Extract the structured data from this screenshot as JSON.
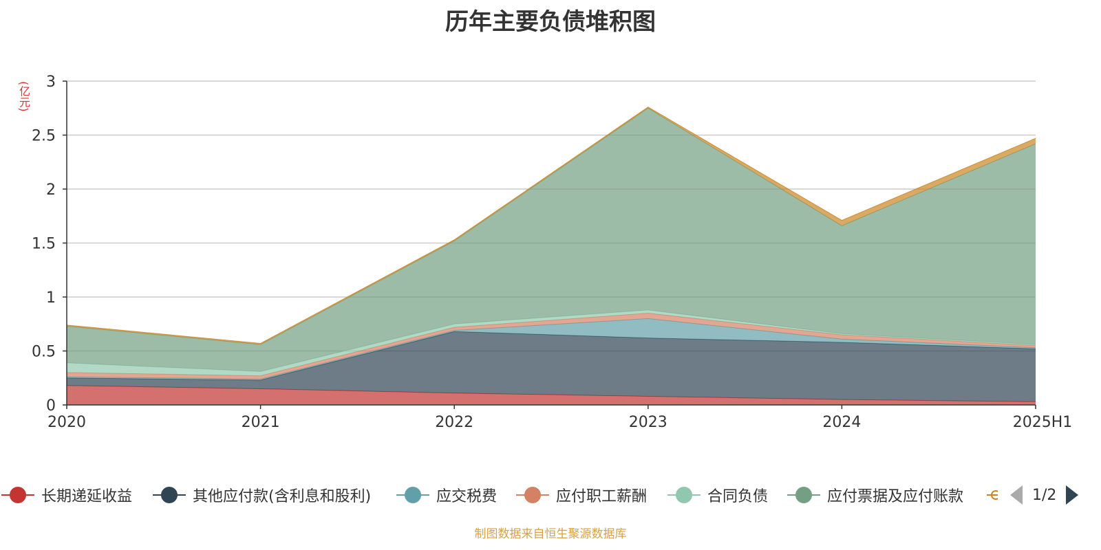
{
  "chart_data": {
    "type": "area",
    "title": "历年主要负债堆积图",
    "ylabel": "(亿元)",
    "categories": [
      "2020",
      "2021",
      "2022",
      "2023",
      "2024",
      "2025H1"
    ],
    "ylim": [
      0,
      3
    ],
    "yticks": [
      "0",
      "0.5",
      "1",
      "1.5",
      "2",
      "2.5",
      "3"
    ],
    "stacked": true,
    "grid": true,
    "series": [
      {
        "name": "长期递延收益",
        "color": "#c23531",
        "values": [
          0.18,
          0.15,
          0.11,
          0.08,
          0.05,
          0.03
        ]
      },
      {
        "name": "其他应付款(含利息和股利)",
        "color": "#2f4554",
        "values": [
          0.07,
          0.08,
          0.57,
          0.54,
          0.53,
          0.49
        ]
      },
      {
        "name": "应交税费",
        "color": "#61a0a8",
        "values": [
          0.01,
          0.01,
          0.01,
          0.18,
          0.03,
          0.01
        ]
      },
      {
        "name": "应付职工薪酬",
        "color": "#d48265",
        "values": [
          0.04,
          0.03,
          0.03,
          0.05,
          0.04,
          0.02
        ]
      },
      {
        "name": "合同负债",
        "color": "#91c7ae",
        "values": [
          0.09,
          0.04,
          0.03,
          0.03,
          0.01,
          0.01
        ]
      },
      {
        "name": "应付票据及应付账款",
        "color": "#749f83",
        "values": [
          0.34,
          0.25,
          0.77,
          1.87,
          1.0,
          1.86
        ]
      },
      {
        "name": "",
        "color": "#ca8622",
        "values": [
          0.01,
          0.01,
          0.01,
          0.01,
          0.05,
          0.05
        ]
      }
    ]
  },
  "legend": {
    "items": [
      {
        "label": "长期递延收益",
        "color": "#c23531"
      },
      {
        "label": "其他应付款(含利息和股利)",
        "color": "#2f4554"
      },
      {
        "label": "应交税费",
        "color": "#61a0a8"
      },
      {
        "label": "应付职工薪酬",
        "color": "#d48265"
      },
      {
        "label": "合同负债",
        "color": "#91c7ae"
      },
      {
        "label": "应付票据及应付账款",
        "color": "#749f83"
      }
    ],
    "page": "1/2"
  },
  "source_note": "制图数据来自恒生聚源数据库"
}
